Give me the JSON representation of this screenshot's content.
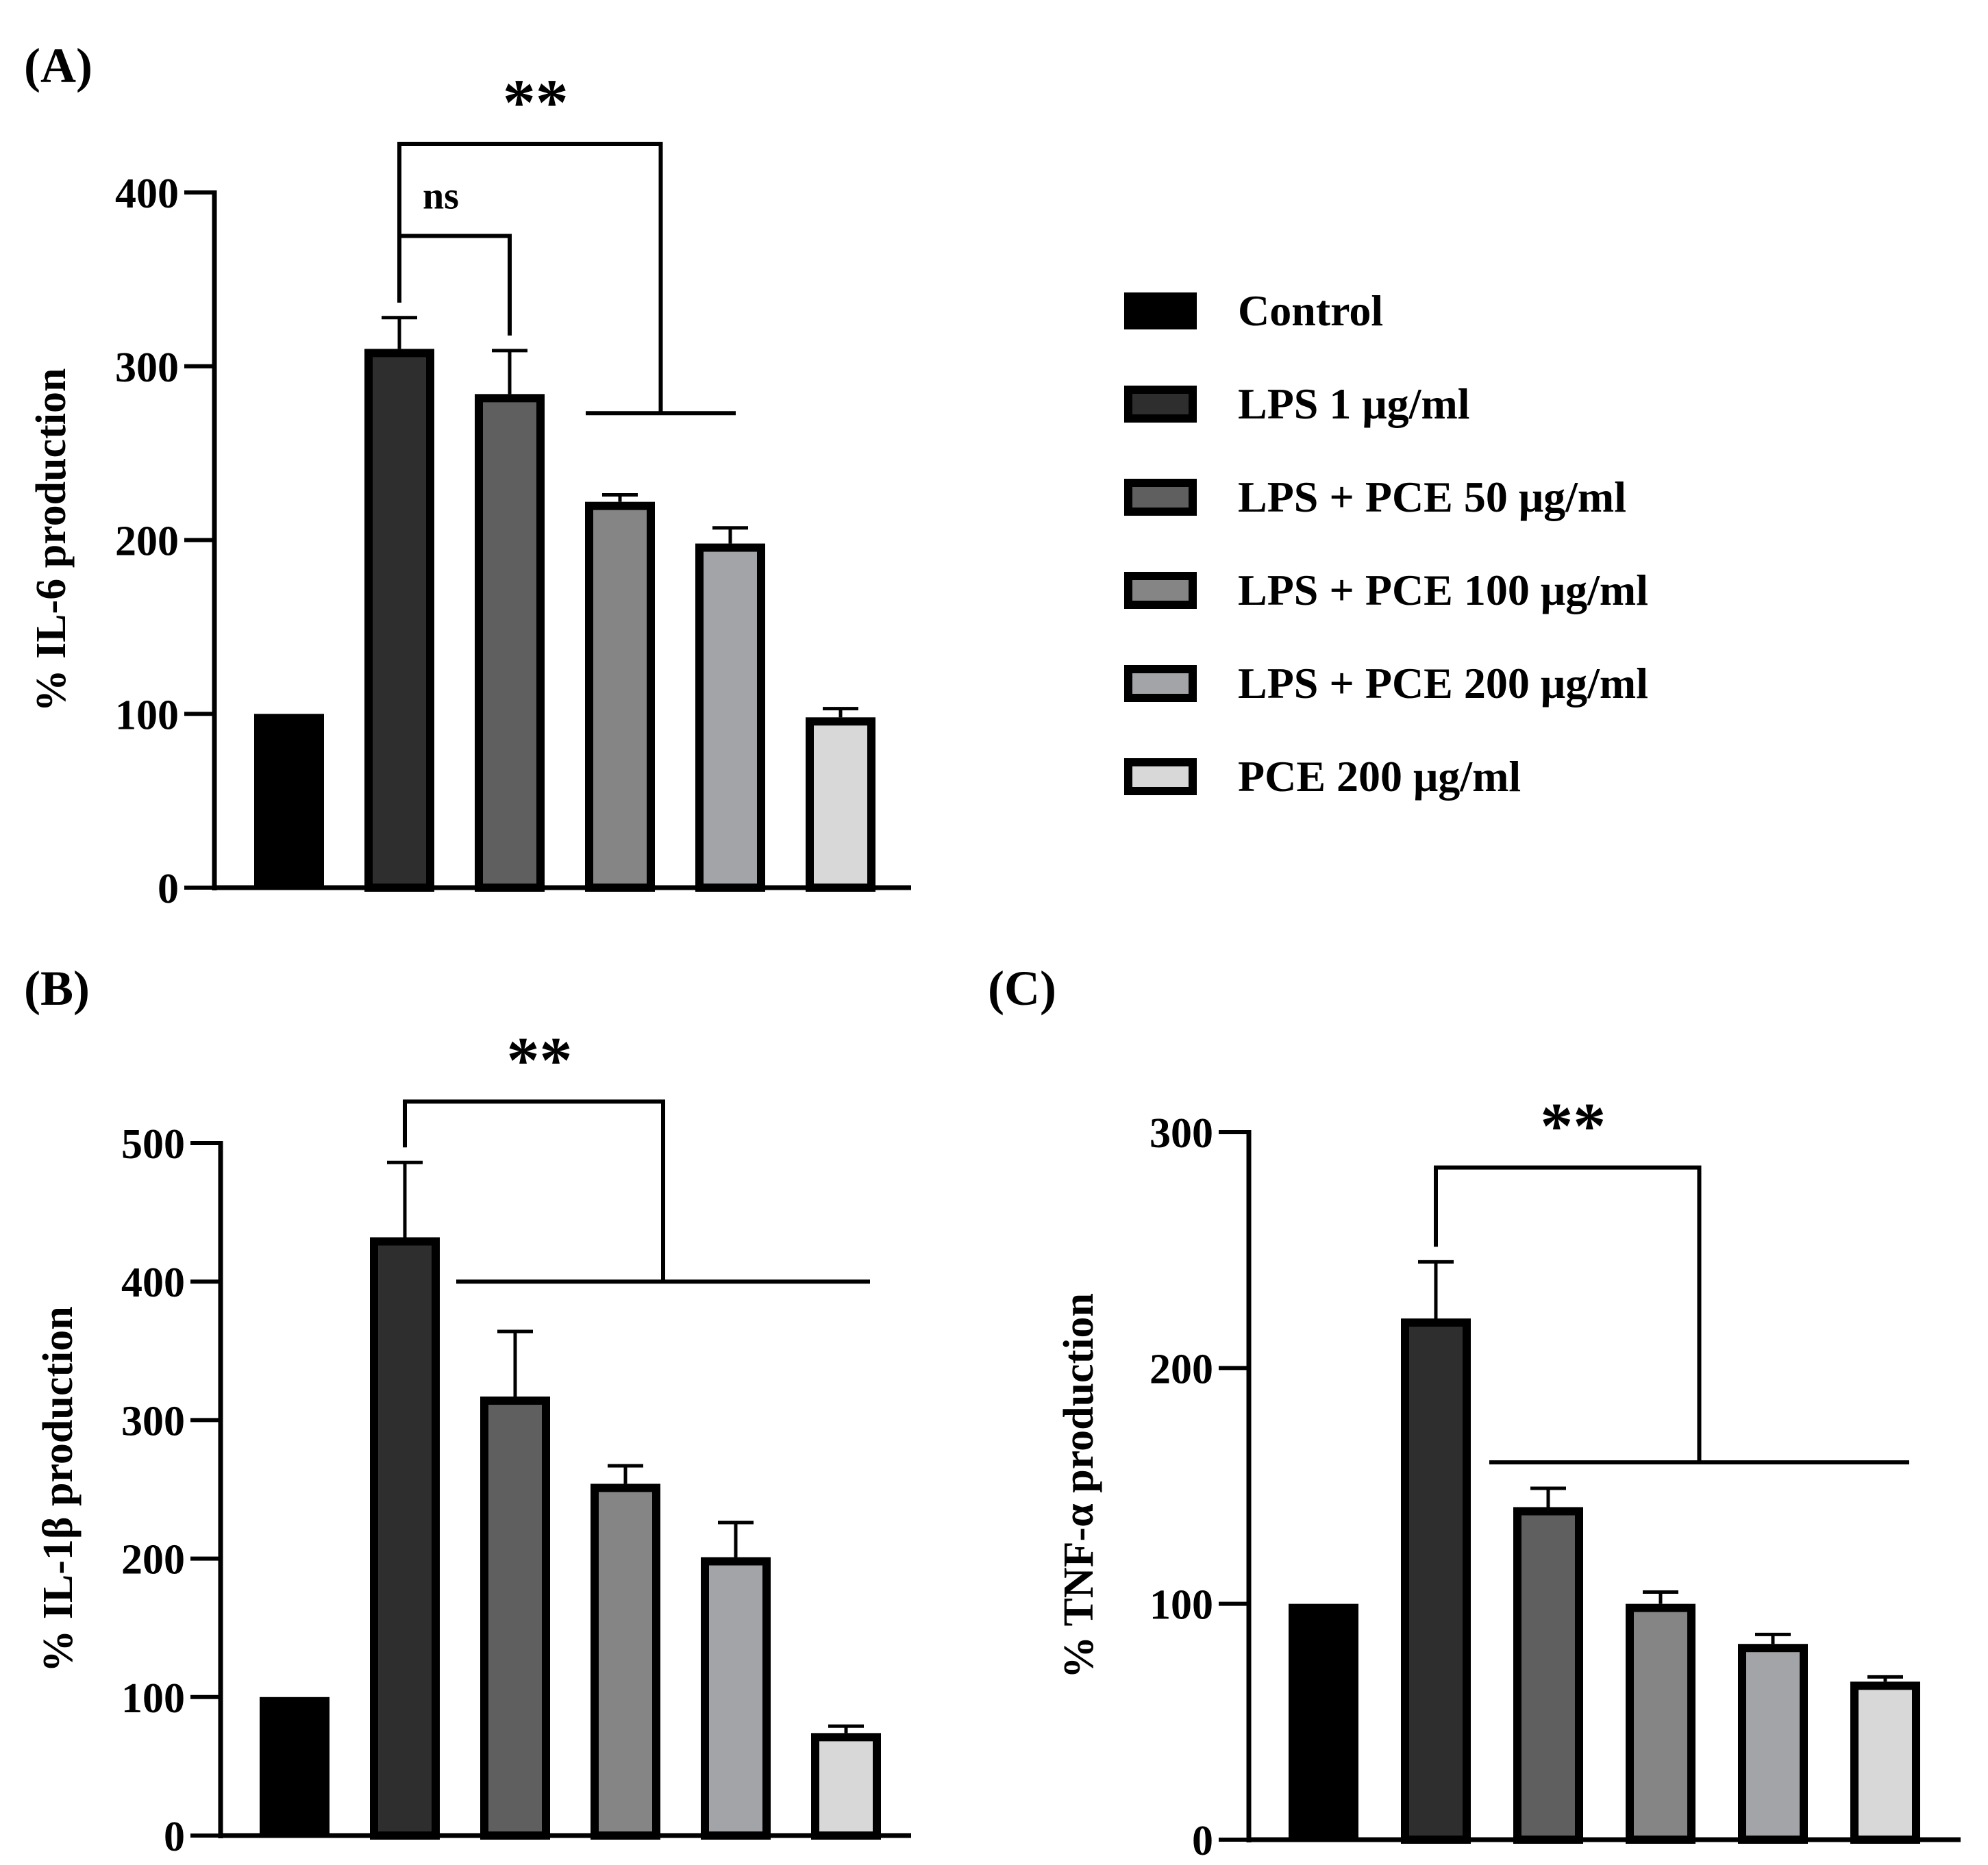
{
  "legend": {
    "items": [
      {
        "label": "Control",
        "color": "#000000"
      },
      {
        "label": "LPS 1 μg/ml",
        "color": "#2e2e2e"
      },
      {
        "label": "LPS + PCE 50 μg/ml",
        "color": "#5f5f5f"
      },
      {
        "label": "LPS + PCE 100 μg/ml",
        "color": "#858585"
      },
      {
        "label": "LPS + PCE 200 μg/ml",
        "color": "#a3a4a8"
      },
      {
        "label": "PCE 200 μg/ml",
        "color": "#d8d8d8"
      }
    ]
  },
  "chart_data": [
    {
      "panel": "(A)",
      "type": "bar",
      "ylabel": "% IL-6 production",
      "ylim": [
        0,
        400
      ],
      "yticks": [
        0,
        100,
        200,
        300,
        400
      ],
      "categories": [
        "Control",
        "LPS 1 μg/ml",
        "LPS + PCE 50 μg/ml",
        "LPS + PCE 100 μg/ml",
        "LPS + PCE 200 μg/ml",
        "PCE 200 μg/ml"
      ],
      "values": [
        100,
        310,
        284,
        222,
        198,
        98
      ],
      "errors": [
        0,
        18,
        25,
        4,
        9,
        5
      ],
      "significance": [
        {
          "label": "ns",
          "from": 1,
          "to": [
            2
          ],
          "level": 375
        },
        {
          "label": "**",
          "from": 1,
          "to": [
            3,
            4
          ],
          "level": 428
        }
      ]
    },
    {
      "panel": "(B)",
      "type": "bar",
      "ylabel": "% IL-1β production",
      "ylim": [
        0,
        500
      ],
      "yticks": [
        0,
        100,
        200,
        300,
        400,
        500
      ],
      "categories": [
        "Control",
        "LPS 1 μg/ml",
        "LPS + PCE 50 μg/ml",
        "LPS + PCE 100 μg/ml",
        "LPS + PCE 200 μg/ml",
        "PCE 200 μg/ml"
      ],
      "values": [
        100,
        432,
        317,
        254,
        201,
        74
      ],
      "errors": [
        0,
        54,
        47,
        13,
        25,
        5
      ],
      "significance": [
        {
          "label": "**",
          "from": 1,
          "to": [
            2,
            5
          ],
          "level": 530
        }
      ]
    },
    {
      "panel": "(C)",
      "type": "bar",
      "ylabel": "% TNF-α production",
      "ylim": [
        0,
        300
      ],
      "yticks": [
        0,
        100,
        200,
        300
      ],
      "categories": [
        "Control",
        "LPS 1 μg/ml",
        "LPS + PCE 50 μg/ml",
        "LPS + PCE 100 μg/ml",
        "LPS + PCE 200 μg/ml",
        "PCE 200 μg/ml"
      ],
      "values": [
        100,
        221,
        141,
        100,
        83,
        67
      ],
      "errors": [
        0,
        24,
        8,
        5,
        4,
        2
      ],
      "significance": [
        {
          "label": "**",
          "from": 1,
          "to": [
            2,
            5
          ],
          "level": 285
        }
      ]
    }
  ]
}
